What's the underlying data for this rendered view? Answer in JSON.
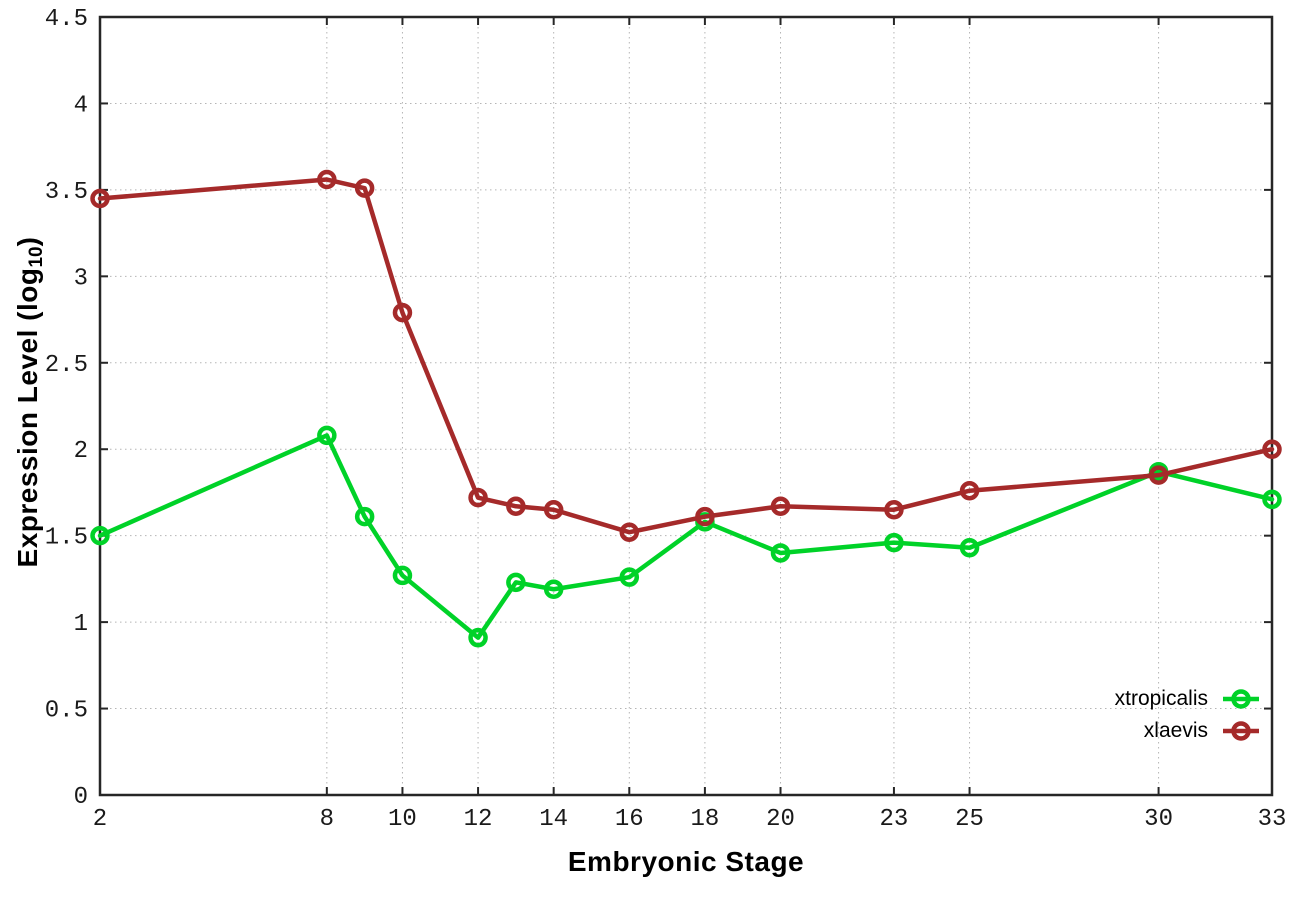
{
  "chart_data": {
    "type": "line",
    "title": "",
    "xlabel": "Embryonic Stage",
    "ylabel": "Expression Level (log10)",
    "ylabel_parts": {
      "main": "Expression Level (log",
      "sub": "10",
      "close": ")"
    },
    "marker": "open-circle",
    "x": [
      2,
      8,
      9,
      10,
      12,
      13,
      14,
      16,
      18,
      20,
      23,
      25,
      30,
      33
    ],
    "series": [
      {
        "name": "xtropicalis",
        "color": "#00d228",
        "values": [
          1.5,
          2.08,
          1.61,
          1.27,
          0.91,
          1.23,
          1.19,
          1.26,
          1.58,
          1.4,
          1.46,
          1.43,
          1.87,
          1.71
        ]
      },
      {
        "name": "xlaevis",
        "color": "#a52a2a",
        "values": [
          3.45,
          3.56,
          3.51,
          2.79,
          1.72,
          1.67,
          1.65,
          1.52,
          1.61,
          1.67,
          1.65,
          1.76,
          1.85,
          2.0
        ]
      }
    ],
    "xlim": [
      2,
      33
    ],
    "ylim": [
      0,
      4.5
    ],
    "x_ticks": [
      2,
      8,
      10,
      12,
      14,
      16,
      18,
      20,
      23,
      25,
      30,
      33
    ],
    "y_ticks": [
      0,
      0.5,
      1,
      1.5,
      2,
      2.5,
      3,
      3.5,
      4,
      4.5
    ],
    "grid": true,
    "legend_position": "inside-bottom-right",
    "colors": {
      "background": "#ffffff",
      "grid": "#b5b5b5",
      "axis": "#262626",
      "text": "#1a1a1a"
    }
  }
}
